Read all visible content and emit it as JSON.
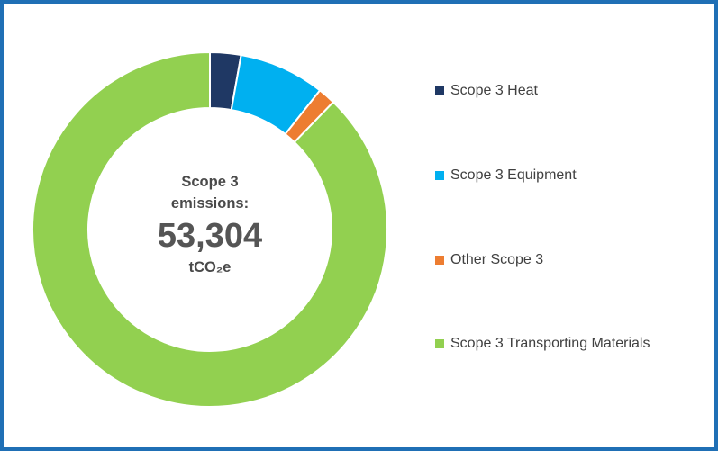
{
  "center": {
    "line1": "Scope 3",
    "line2": "emissions:",
    "value": "53,304",
    "unit": "tCO₂e"
  },
  "legend": [
    {
      "label": "Scope 3 Heat",
      "color": "#1f3864"
    },
    {
      "label": "Scope 3 Equipment",
      "color": "#00b0f0"
    },
    {
      "label": "Other Scope 3",
      "color": "#ed7d31"
    },
    {
      "label": "Scope 3 Transporting Materials",
      "color": "#92d050"
    }
  ],
  "chart_data": {
    "type": "pie",
    "subtype": "donut",
    "total": 53304,
    "unit": "tCO₂e",
    "categories": [
      "Scope 3 Heat",
      "Scope 3 Equipment",
      "Other Scope 3",
      "Scope 3 Transporting Materials"
    ],
    "values": [
      1500,
      4170,
      850,
      46784
    ],
    "colors": [
      "#1f3864",
      "#00b0f0",
      "#ed7d31",
      "#92d050"
    ],
    "legend_position": "right"
  }
}
